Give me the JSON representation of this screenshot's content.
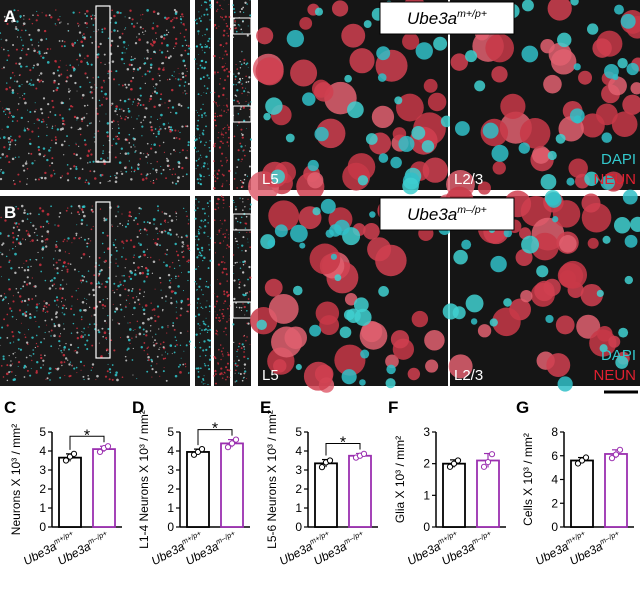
{
  "image_panels": [
    {
      "label": "A",
      "genotype": [
        "Ube3a",
        "m+/p+"
      ],
      "layers": [
        "L5",
        "L2/3"
      ],
      "stains": [
        "DAPI",
        "NEUN"
      ]
    },
    {
      "label": "B",
      "genotype": [
        "Ube3a",
        "m–/p+"
      ],
      "layers": [
        "L5",
        "L2/3"
      ],
      "stains": [
        "DAPI",
        "NEUN"
      ]
    }
  ],
  "chart_data": [
    {
      "type": "bar",
      "panel": "C",
      "ylabel": "Neurons X 10³ / mm²",
      "categories": [
        [
          "Ube3a",
          "m+/p+"
        ],
        [
          "Ube3a",
          "m–/p+"
        ]
      ],
      "values": [
        3.65,
        4.1
      ],
      "errors": [
        0.2,
        0.15
      ],
      "points": [
        [
          3.5,
          3.7,
          3.85
        ],
        [
          3.95,
          4.15,
          4.25
        ]
      ],
      "colors": [
        "#000000",
        "#9b30b0"
      ],
      "ylim": [
        0,
        5
      ],
      "yticks": [
        0,
        1,
        2,
        3,
        4,
        5
      ],
      "annotation": "*"
    },
    {
      "type": "bar",
      "panel": "D",
      "ylabel": "L1-4 Neurons X 10³ / mm²",
      "categories": [
        [
          "Ube3a",
          "m+/p+"
        ],
        [
          "Ube3a",
          "m–/p+"
        ]
      ],
      "values": [
        3.95,
        4.4
      ],
      "errors": [
        0.15,
        0.2
      ],
      "points": [
        [
          3.8,
          3.95,
          4.1
        ],
        [
          4.2,
          4.4,
          4.6
        ]
      ],
      "colors": [
        "#000000",
        "#9b30b0"
      ],
      "ylim": [
        0,
        5
      ],
      "yticks": [
        0,
        1,
        2,
        3,
        4,
        5
      ],
      "annotation": "*"
    },
    {
      "type": "bar",
      "panel": "E",
      "ylabel": "L5-6 Neurons X 10³ / mm²",
      "categories": [
        [
          "Ube3a",
          "m+/p+"
        ],
        [
          "Ube3a",
          "m–/p+"
        ]
      ],
      "values": [
        3.35,
        3.75
      ],
      "errors": [
        0.2,
        0.12
      ],
      "points": [
        [
          3.15,
          3.4,
          3.5
        ],
        [
          3.65,
          3.75,
          3.85
        ]
      ],
      "colors": [
        "#000000",
        "#9b30b0"
      ],
      "ylim": [
        0,
        5
      ],
      "yticks": [
        0,
        1,
        2,
        3,
        4,
        5
      ],
      "annotation": "*"
    },
    {
      "type": "bar",
      "panel": "F",
      "ylabel": "Glia X 10³ / mm²",
      "categories": [
        [
          "Ube3a",
          "m+/p+"
        ],
        [
          "Ube3a",
          "m–/p+"
        ]
      ],
      "values": [
        2.0,
        2.1
      ],
      "errors": [
        0.12,
        0.22
      ],
      "points": [
        [
          1.9,
          2.0,
          2.1
        ],
        [
          1.9,
          2.05,
          2.3
        ]
      ],
      "colors": [
        "#000000",
        "#9b30b0"
      ],
      "ylim": [
        0,
        3
      ],
      "yticks": [
        0,
        1,
        2,
        3
      ]
    },
    {
      "type": "bar",
      "panel": "G",
      "ylabel": "Cells X 10³ / mm²",
      "categories": [
        [
          "Ube3a",
          "m+/p+"
        ],
        [
          "Ube3a",
          "m–/p+"
        ]
      ],
      "values": [
        5.6,
        6.15
      ],
      "errors": [
        0.25,
        0.35
      ],
      "points": [
        [
          5.35,
          5.6,
          5.85
        ],
        [
          5.8,
          6.1,
          6.5
        ]
      ],
      "colors": [
        "#000000",
        "#9b30b0"
      ],
      "ylim": [
        0,
        8
      ],
      "yticks": [
        0,
        2,
        4,
        6,
        8
      ]
    }
  ]
}
